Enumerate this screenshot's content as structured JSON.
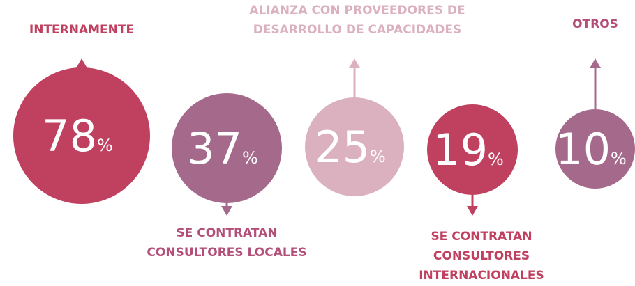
{
  "unit": "%",
  "items": [
    {
      "label": [
        "INTERNAMENTE"
      ],
      "value": 78,
      "color": "#c0405f",
      "label_color": "#c0405f",
      "position": "top"
    },
    {
      "label": [
        "SE CONTRATAN",
        "CONSULTORES LOCALES"
      ],
      "value": 37,
      "color": "#a5698b",
      "label_color": "#b34f78",
      "position": "bottom"
    },
    {
      "label": [
        "ALIANZA CON PROVEEDORES DE",
        "DESARROLLO DE CAPACIDADES"
      ],
      "value": 25,
      "color": "#dbb0bf",
      "label_color": "#dbb0bf",
      "position": "top"
    },
    {
      "label": [
        "SE CONTRATAN",
        "CONSULTORES",
        "INTERNACIONALES"
      ],
      "value": 19,
      "color": "#c0405f",
      "label_color": "#c0405f",
      "position": "bottom"
    },
    {
      "label": [
        "OTROS"
      ],
      "value": 10,
      "color": "#a5698b",
      "label_color": "#b34f78",
      "position": "top"
    }
  ]
}
